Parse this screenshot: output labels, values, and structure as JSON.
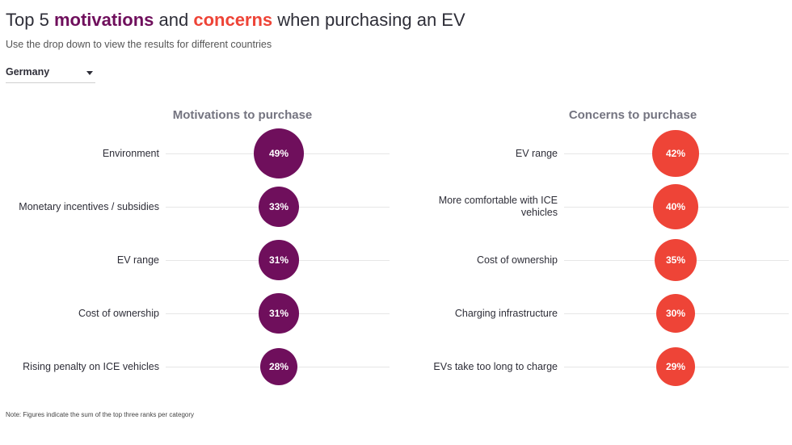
{
  "header": {
    "title_prefix": "Top 5 ",
    "title_word1": "motivations",
    "title_mid": " and ",
    "title_word2": "concerns",
    "title_suffix": " when purchasing an EV",
    "subtitle": "Use the drop down to view the results for different countries"
  },
  "country_select": {
    "selected": "Germany"
  },
  "colors": {
    "motivation": "#6f0f5c",
    "concern": "#ee4437"
  },
  "chart_data": [
    {
      "type": "bubble",
      "title": "Motivations to purchase",
      "unit": "%",
      "categories": [
        "Environment",
        "Monetary incentives / subsidies",
        "EV range",
        "Cost of ownership",
        "Rising penalty on ICE vehicles"
      ],
      "values": [
        49,
        33,
        31,
        31,
        28
      ],
      "labels": [
        "49%",
        "33%",
        "31%",
        "31%",
        "28%"
      ]
    },
    {
      "type": "bubble",
      "title": "Concerns to purchase",
      "unit": "%",
      "categories": [
        "EV range",
        "More comfortable with ICE vehicles",
        "Cost of ownership",
        "Charging infrastructure",
        "EVs take too long to charge"
      ],
      "values": [
        42,
        40,
        35,
        30,
        29
      ],
      "labels": [
        "42%",
        "40%",
        "35%",
        "30%",
        "29%"
      ]
    }
  ],
  "footnote": "Note: Figures indicate the sum of the top three ranks per category"
}
